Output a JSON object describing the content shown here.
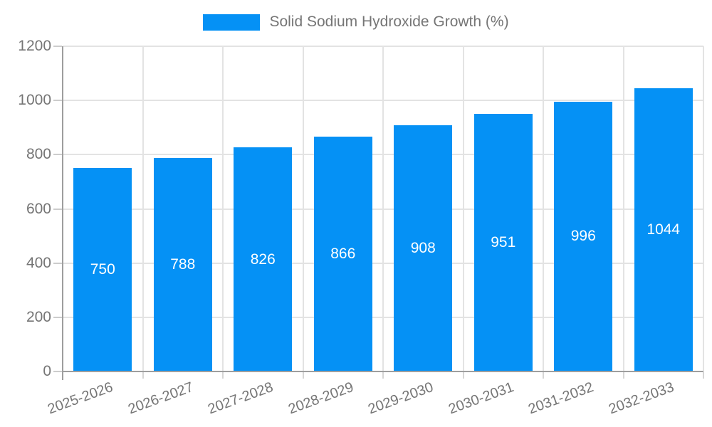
{
  "legend": {
    "label": "Solid Sodium Hydroxide Growth (%)"
  },
  "chart_data": {
    "type": "bar",
    "title": "Solid Sodium Hydroxide Growth (%)",
    "categories": [
      "2025-2026",
      "2026-2027",
      "2027-2028",
      "2028-2029",
      "2029-2030",
      "2030-2031",
      "2031-2032",
      "2032-2033"
    ],
    "values": [
      750,
      788,
      826,
      866,
      908,
      951,
      996,
      1044
    ],
    "bar_value_labels": [
      "750",
      "788",
      "826",
      "866",
      "908",
      "951",
      "996",
      "1044"
    ],
    "xlabel": "",
    "ylabel": "",
    "ylim": [
      0,
      1200
    ],
    "yticks": [
      0,
      200,
      400,
      600,
      800,
      1000,
      1200
    ],
    "grid": true,
    "legend_position": "top-center",
    "colors": {
      "bar": "#0591f5",
      "bar_value_text": "#ffffff",
      "axis_text": "#757575",
      "axis_line": "#9e9e9e",
      "gridline": "#e3e3e3",
      "background": "#ffffff"
    }
  }
}
